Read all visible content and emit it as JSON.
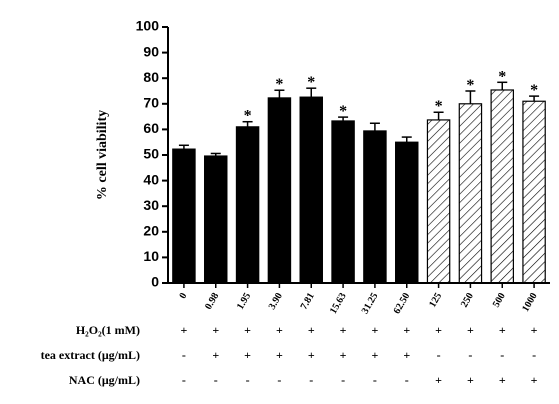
{
  "chart_data": {
    "type": "bar",
    "ylabel": "% cell viability",
    "categories": [
      "0",
      "0.98",
      "1.95",
      "3.90",
      "7.81",
      "15.63",
      "31.25",
      "62.50",
      "125",
      "250",
      "500",
      "1000"
    ],
    "values": [
      52.3,
      49.6,
      61,
      72.3,
      72.6,
      63.3,
      59.4,
      55,
      63.7,
      70,
      75.4,
      71
    ],
    "errors": [
      1.5,
      1,
      2,
      3,
      3.5,
      1.5,
      3,
      2,
      3,
      5,
      3,
      2
    ],
    "markers": [
      null,
      null,
      "*",
      "*",
      "*",
      "*",
      null,
      null,
      "*",
      "*",
      "*",
      "*"
    ],
    "fills": [
      "solid",
      "solid",
      "solid",
      "solid",
      "solid",
      "solid",
      "solid",
      "solid",
      "hatch",
      "hatch",
      "hatch",
      "hatch"
    ],
    "color": "#000000",
    "ylim": [
      0,
      100
    ],
    "yticks": [
      0,
      10,
      20,
      30,
      40,
      50,
      60,
      70,
      80,
      90,
      100
    ],
    "treatments": [
      {
        "label": "H₂O₂(1 mM)",
        "signs": [
          "+",
          "+",
          "+",
          "+",
          "+",
          "+",
          "+",
          "+",
          "+",
          "+",
          "+",
          "+"
        ]
      },
      {
        "label": "tea extract (μg/mL)",
        "signs": [
          "-",
          "+",
          "+",
          "+",
          "+",
          "+",
          "+",
          "+",
          "-",
          "-",
          "-",
          "-"
        ]
      },
      {
        "label": "NAC (μg/mL)",
        "signs": [
          "-",
          "-",
          "-",
          "-",
          "-",
          "-",
          "-",
          "-",
          "+",
          "+",
          "+",
          "+"
        ]
      }
    ]
  }
}
